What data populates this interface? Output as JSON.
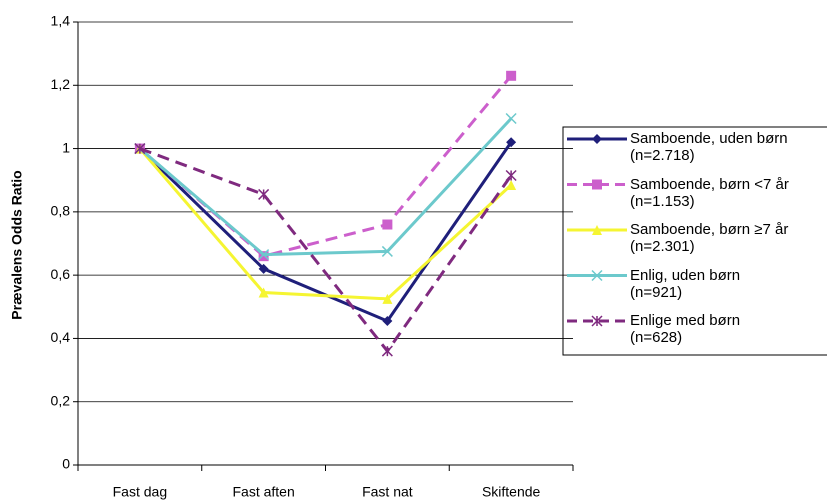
{
  "chart_data": {
    "type": "line",
    "y_label": "Prævalens Odds Ratio",
    "categories": [
      "Fast dag",
      "Fast aften",
      "Fast nat",
      "Skiftende"
    ],
    "ylim": [
      0,
      1.4
    ],
    "yticks": [
      0,
      {
        "value": 0.2,
        "label": "0,2"
      },
      {
        "value": 0.4,
        "label": "0,4"
      },
      {
        "value": 0.6,
        "label": "0,6"
      },
      {
        "value": 0.8,
        "label": "0,8"
      },
      1,
      {
        "value": 1.2,
        "label": "1,2"
      },
      {
        "value": 1.4,
        "label": "1,4"
      }
    ],
    "grid": true,
    "series": [
      {
        "name": "Samboende, uden børn\n(n=2.718)",
        "color": "#1f1f7a",
        "marker": "diamond",
        "dashed": false,
        "values": [
          1,
          0.62,
          0.455,
          1.02
        ]
      },
      {
        "name": "Samboende, børn <7 år\n(n=1.153)",
        "color": "#cc5fcc",
        "marker": "square",
        "dashed": true,
        "values": [
          1,
          0.66,
          0.76,
          1.23
        ]
      },
      {
        "name": "Samboende, børn ≥7 år\n(n=2.301)",
        "color": "#f5f532",
        "marker": "triangle",
        "dashed": false,
        "values": [
          1,
          0.545,
          0.525,
          0.885
        ]
      },
      {
        "name": "Enlig, uden børn\n(n=921)",
        "color": "#6cc9cc",
        "marker": "x",
        "dashed": false,
        "values": [
          1,
          0.665,
          0.675,
          1.095
        ]
      },
      {
        "name": "Enlige med børn\n(n=628)",
        "color": "#7f2a7f",
        "marker": "star",
        "dashed": true,
        "values": [
          1,
          0.855,
          0.36,
          0.915
        ]
      }
    ]
  }
}
